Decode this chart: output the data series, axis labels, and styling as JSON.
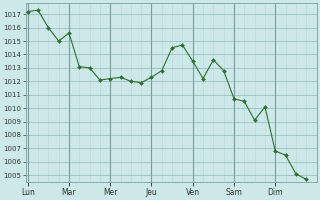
{
  "background_color": "#cce8e8",
  "line_color": "#2d6e2d",
  "marker_color": "#2d6e2d",
  "grid_major_color": "#9bbfbf",
  "grid_minor_color": "#b8d8d8",
  "ylim": [
    1004.5,
    1017.8
  ],
  "yticks": [
    1005,
    1006,
    1007,
    1008,
    1009,
    1010,
    1011,
    1012,
    1013,
    1014,
    1015,
    1016,
    1017
  ],
  "day_labels": [
    "Lun",
    "Mar",
    "Mer",
    "Jeu",
    "Ven",
    "Sam",
    "Dim"
  ],
  "x_values": [
    0,
    0.25,
    0.5,
    0.75,
    1.0,
    1.25,
    1.5,
    1.75,
    2.0,
    2.25,
    2.5,
    2.75,
    3.0,
    3.25,
    3.5,
    3.75,
    4.0,
    4.25,
    4.5,
    4.75,
    5.0,
    5.25,
    5.5,
    5.75,
    6.0,
    6.25,
    6.5,
    6.75
  ],
  "y_values": [
    1017.2,
    1017.3,
    1016.0,
    1015.0,
    1015.6,
    1013.1,
    1013.0,
    1012.1,
    1012.2,
    1012.3,
    1012.0,
    1011.9,
    1012.3,
    1012.8,
    1014.5,
    1014.7,
    1013.5,
    1012.2,
    1013.6,
    1012.8,
    1010.7,
    1010.5,
    1009.1,
    1010.1,
    1006.8,
    1006.5,
    1005.1,
    1004.7
  ],
  "day_x_positions": [
    0,
    1,
    2,
    3,
    4,
    5,
    6
  ],
  "xlim": [
    -0.05,
    7.0
  ]
}
